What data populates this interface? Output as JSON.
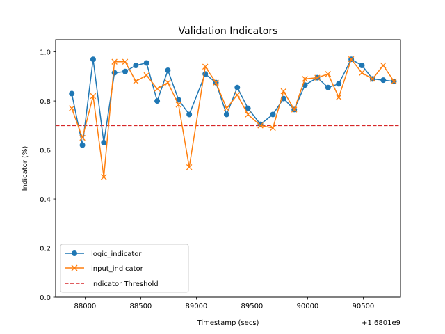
{
  "chart_data": {
    "type": "line",
    "title": "Validation Indicators",
    "xlabel": "Timestamp (secs)",
    "ylabel": "Indicator (%)",
    "x_offset_label": "+1.6801e9",
    "xlim": [
      87735,
      90835
    ],
    "ylim": [
      0.0,
      1.05
    ],
    "x_ticks": [
      88000,
      88500,
      89000,
      89500,
      90000,
      90500
    ],
    "x_tick_labels": [
      "88000",
      "88500",
      "89000",
      "89500",
      "90000",
      "90500"
    ],
    "y_ticks": [
      0.0,
      0.2,
      0.4,
      0.6,
      0.8,
      1.0
    ],
    "y_tick_labels": [
      "0.0",
      "0.2",
      "0.4",
      "0.6",
      "0.8",
      "1.0"
    ],
    "grid": false,
    "legend_position": "lower-left",
    "x": [
      87880,
      87976,
      88072,
      88168,
      88264,
      88360,
      88456,
      88552,
      88648,
      88744,
      88840,
      88936,
      89080,
      89176,
      89272,
      89368,
      89464,
      89576,
      89688,
      89784,
      89880,
      89976,
      90088,
      90184,
      90280,
      90392,
      90488,
      90584,
      90680,
      90776
    ],
    "series": [
      {
        "name": "logic_indicator",
        "color": "#1f77b4",
        "marker": "circle",
        "values": [
          0.83,
          0.62,
          0.97,
          0.63,
          0.915,
          0.92,
          0.945,
          0.955,
          0.8,
          0.925,
          0.805,
          0.745,
          0.91,
          0.875,
          0.745,
          0.855,
          0.77,
          0.705,
          0.745,
          0.81,
          0.765,
          0.865,
          0.895,
          0.855,
          0.87,
          0.97,
          0.945,
          0.89,
          0.885,
          0.88
        ]
      },
      {
        "name": "input_indicator",
        "color": "#ff7f0e",
        "marker": "x",
        "values": [
          0.77,
          0.65,
          0.82,
          0.49,
          0.96,
          0.96,
          0.88,
          0.905,
          0.85,
          0.875,
          0.785,
          0.53,
          0.94,
          0.875,
          0.77,
          0.825,
          0.745,
          0.7,
          0.69,
          0.84,
          0.765,
          0.89,
          0.895,
          0.91,
          0.815,
          0.97,
          0.915,
          0.89,
          0.945,
          0.88
        ]
      }
    ],
    "threshold": {
      "name": "Indicator Threshold",
      "value": 0.7,
      "color": "#d62728",
      "style": "dashed"
    }
  }
}
